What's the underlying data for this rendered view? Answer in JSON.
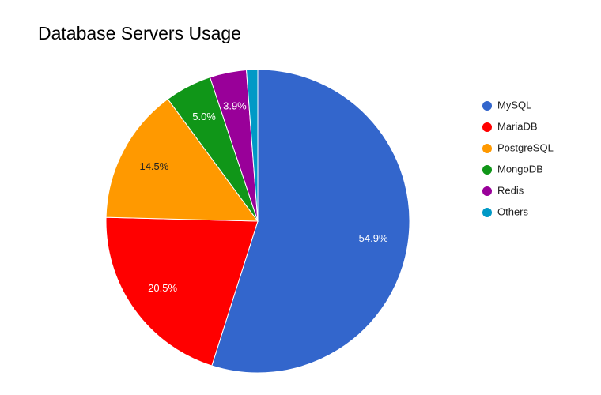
{
  "chart_data": {
    "type": "pie",
    "title": "Database Servers Usage",
    "categories": [
      "MySQL",
      "MariaDB",
      "PostgreSQL",
      "MongoDB",
      "Redis",
      "Others"
    ],
    "values": [
      54.9,
      20.5,
      14.5,
      5.0,
      3.9,
      1.2
    ],
    "value_labels": [
      "54.9%",
      "20.5%",
      "14.5%",
      "5.0%",
      "3.9%",
      null
    ],
    "colors": [
      "#3366cc",
      "#ff0000",
      "#ff9900",
      "#109618",
      "#990099",
      "#0099c6"
    ],
    "legend": "right"
  }
}
